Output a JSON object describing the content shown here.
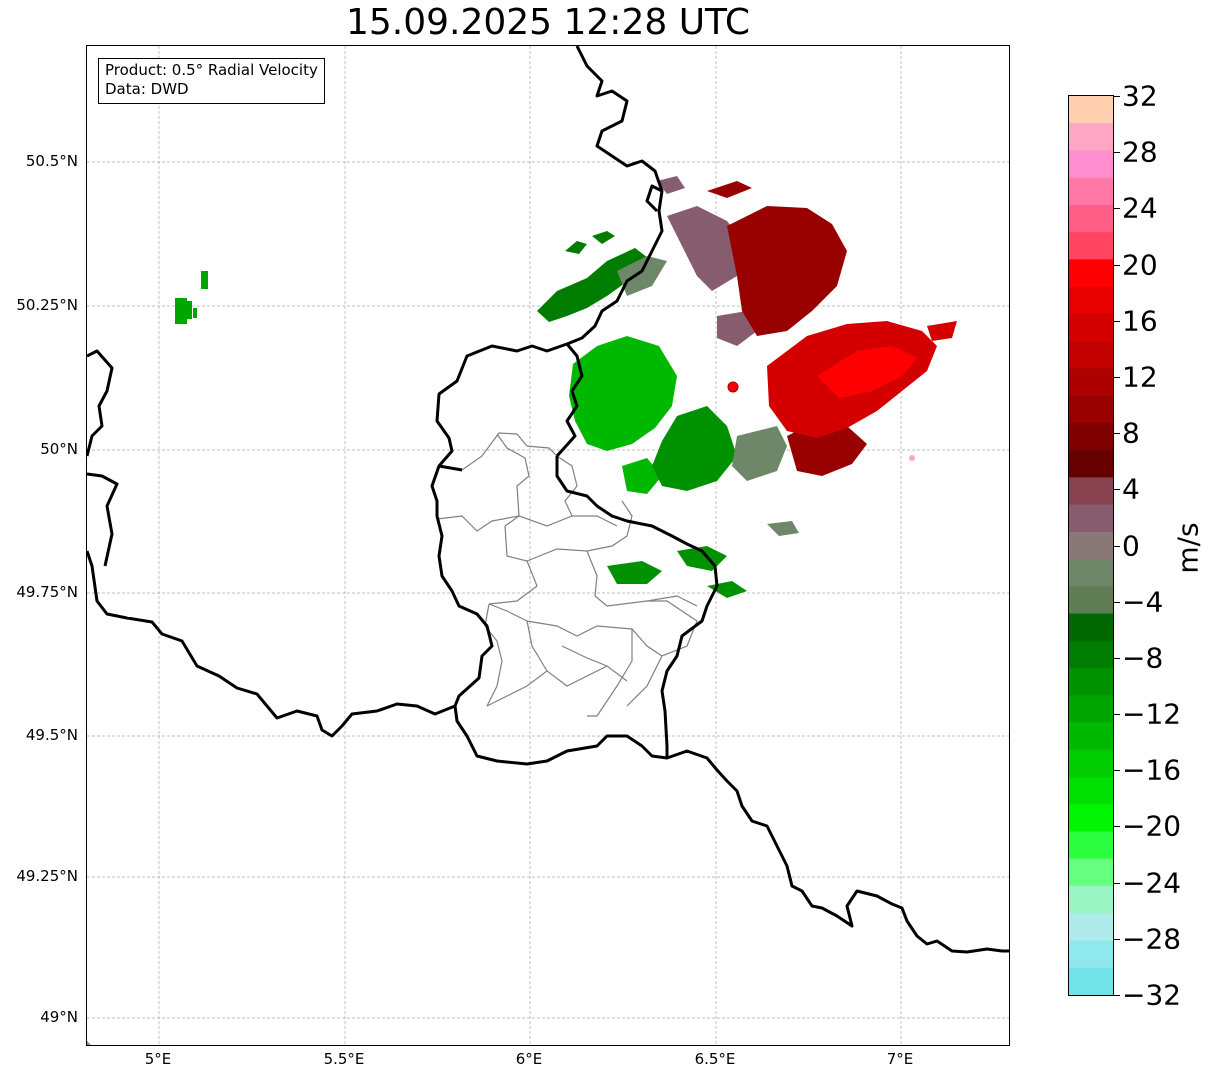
{
  "title": "15.09.2025 12:28 UTC",
  "info": {
    "product": "Product: 0.5° Radial Velocity",
    "source": "Data: DWD"
  },
  "axes": {
    "lon_ticks": [
      "5°E",
      "5.5°E",
      "6°E",
      "6.5°E",
      "7°E"
    ],
    "lat_ticks": [
      "50.5°N",
      "50.25°N",
      "50°N",
      "49.75°N",
      "49.5°N",
      "49.25°N",
      "49°N"
    ]
  },
  "colorbar": {
    "unit": "m/s",
    "ticks": [
      "32",
      "28",
      "24",
      "20",
      "16",
      "12",
      "8",
      "4",
      "0",
      "−4",
      "−8",
      "−12",
      "−16",
      "−20",
      "−24",
      "−28",
      "−32"
    ],
    "colors": [
      "#ffcfb0",
      "#ffa7c5",
      "#ff8fcf",
      "#ff78a8",
      "#ff5f86",
      "#ff455f",
      "#ff0000",
      "#e60000",
      "#d40000",
      "#c20000",
      "#ad0000",
      "#990000",
      "#7f0000",
      "#660000",
      "#86434f",
      "#885c6f",
      "#8a7878",
      "#6e8769",
      "#5f7e56",
      "#006600",
      "#007d00",
      "#009100",
      "#00a600",
      "#00b800",
      "#00cc00",
      "#00e000",
      "#00f500",
      "#2cff40",
      "#66ff80",
      "#99f5c4",
      "#b0ebeb",
      "#8fe8eb",
      "#72e3e6"
    ]
  },
  "colors": {
    "radar_site": "#ff0000",
    "country_border": "#000000",
    "district_border": "#808080",
    "grid": "#aaaaaa"
  }
}
